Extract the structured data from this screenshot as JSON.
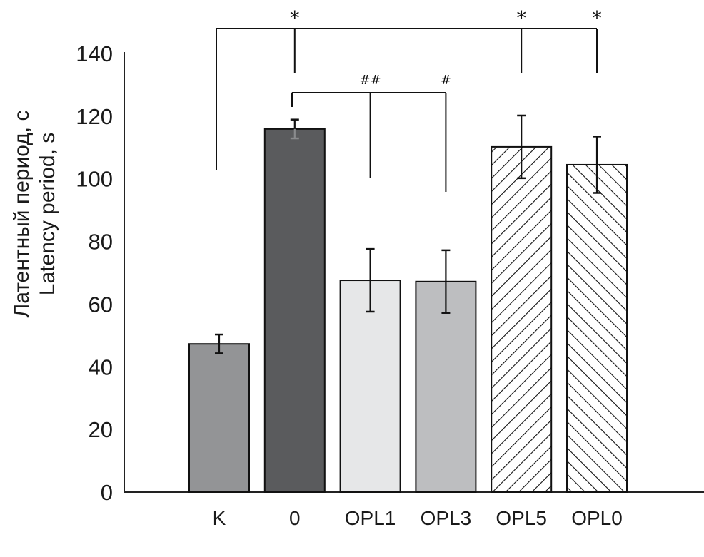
{
  "chart_data": {
    "type": "bar",
    "title": "",
    "xlabel": "",
    "ylabel": [
      "Латентный период, с",
      "Latency period, s"
    ],
    "ylim": [
      0,
      140
    ],
    "yticks": [
      0,
      20,
      40,
      60,
      80,
      100,
      120,
      140
    ],
    "grid": false,
    "categories": [
      "K",
      "0",
      "OPL1",
      "OPL3",
      "OPL5",
      "OPL0"
    ],
    "values": [
      47.3,
      115.9,
      67.6,
      67.2,
      110.2,
      104.5
    ],
    "errors": [
      3,
      3,
      10,
      10,
      10,
      9
    ],
    "fills": [
      {
        "color": "#939496",
        "pattern": "solid"
      },
      {
        "color": "#5a5b5d",
        "pattern": "solid"
      },
      {
        "color": "#e6e7e8",
        "pattern": "solid"
      },
      {
        "color": "#bdbec0",
        "pattern": "solid"
      },
      {
        "color": "#ffffff",
        "pattern": "hatch-forward"
      },
      {
        "color": "#ffffff",
        "pattern": "hatch-back"
      }
    ],
    "annotations": {
      "star_bracket": {
        "label": "*",
        "from": "K",
        "targets": [
          "0",
          "OPL5",
          "OPL0"
        ],
        "level": 146
      },
      "hash_bracket": {
        "from": "0",
        "level": 127,
        "targets": [
          {
            "category": "OPL1",
            "label": "##"
          },
          {
            "category": "OPL3",
            "label": "#"
          }
        ]
      }
    }
  }
}
